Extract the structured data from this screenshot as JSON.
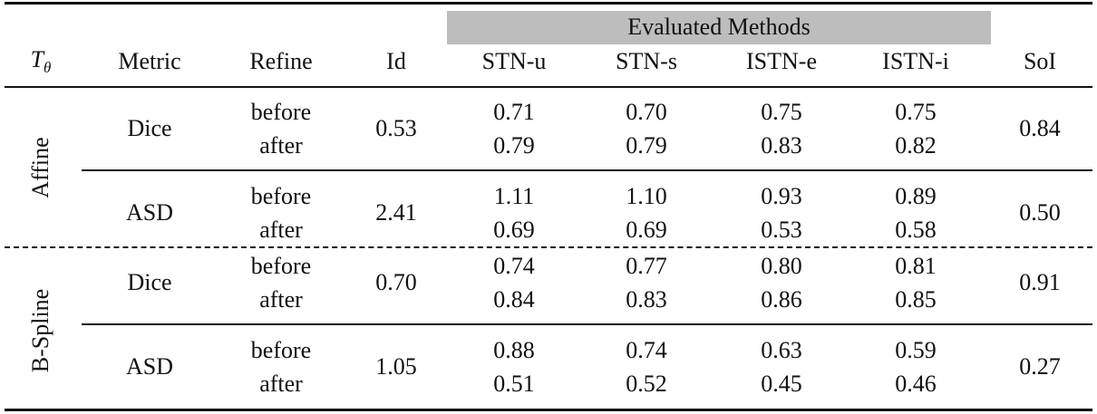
{
  "header": {
    "group_label": "Evaluated Methods",
    "theta": {
      "symbol": "T",
      "subscript": "θ"
    },
    "columns": [
      "Metric",
      "Refine",
      "Id",
      "STN-u",
      "STN-s",
      "ISTN-e",
      "ISTN-i",
      "SoI"
    ]
  },
  "groups": [
    {
      "transform": "Affine",
      "blocks": [
        {
          "metric": "Dice",
          "refine": [
            "before",
            "after"
          ],
          "id": "0.53",
          "methods": [
            [
              "0.71",
              "0.79"
            ],
            [
              "0.70",
              "0.79"
            ],
            [
              "0.75",
              "0.83"
            ],
            [
              "0.75",
              "0.82"
            ]
          ],
          "soi": "0.84"
        },
        {
          "metric": "ASD",
          "refine": [
            "before",
            "after"
          ],
          "id": "2.41",
          "methods": [
            [
              "1.11",
              "0.69"
            ],
            [
              "1.10",
              "0.69"
            ],
            [
              "0.93",
              "0.53"
            ],
            [
              "0.89",
              "0.58"
            ]
          ],
          "soi": "0.50"
        }
      ]
    },
    {
      "transform": "B-Spline",
      "blocks": [
        {
          "metric": "Dice",
          "refine": [
            "before",
            "after"
          ],
          "id": "0.70",
          "methods": [
            [
              "0.74",
              "0.84"
            ],
            [
              "0.77",
              "0.83"
            ],
            [
              "0.80",
              "0.86"
            ],
            [
              "0.81",
              "0.85"
            ]
          ],
          "soi": "0.91"
        },
        {
          "metric": "ASD",
          "refine": [
            "before",
            "after"
          ],
          "id": "1.05",
          "methods": [
            [
              "0.88",
              "0.51"
            ],
            [
              "0.74",
              "0.52"
            ],
            [
              "0.63",
              "0.45"
            ],
            [
              "0.59",
              "0.46"
            ]
          ],
          "soi": "0.27"
        }
      ]
    }
  ]
}
